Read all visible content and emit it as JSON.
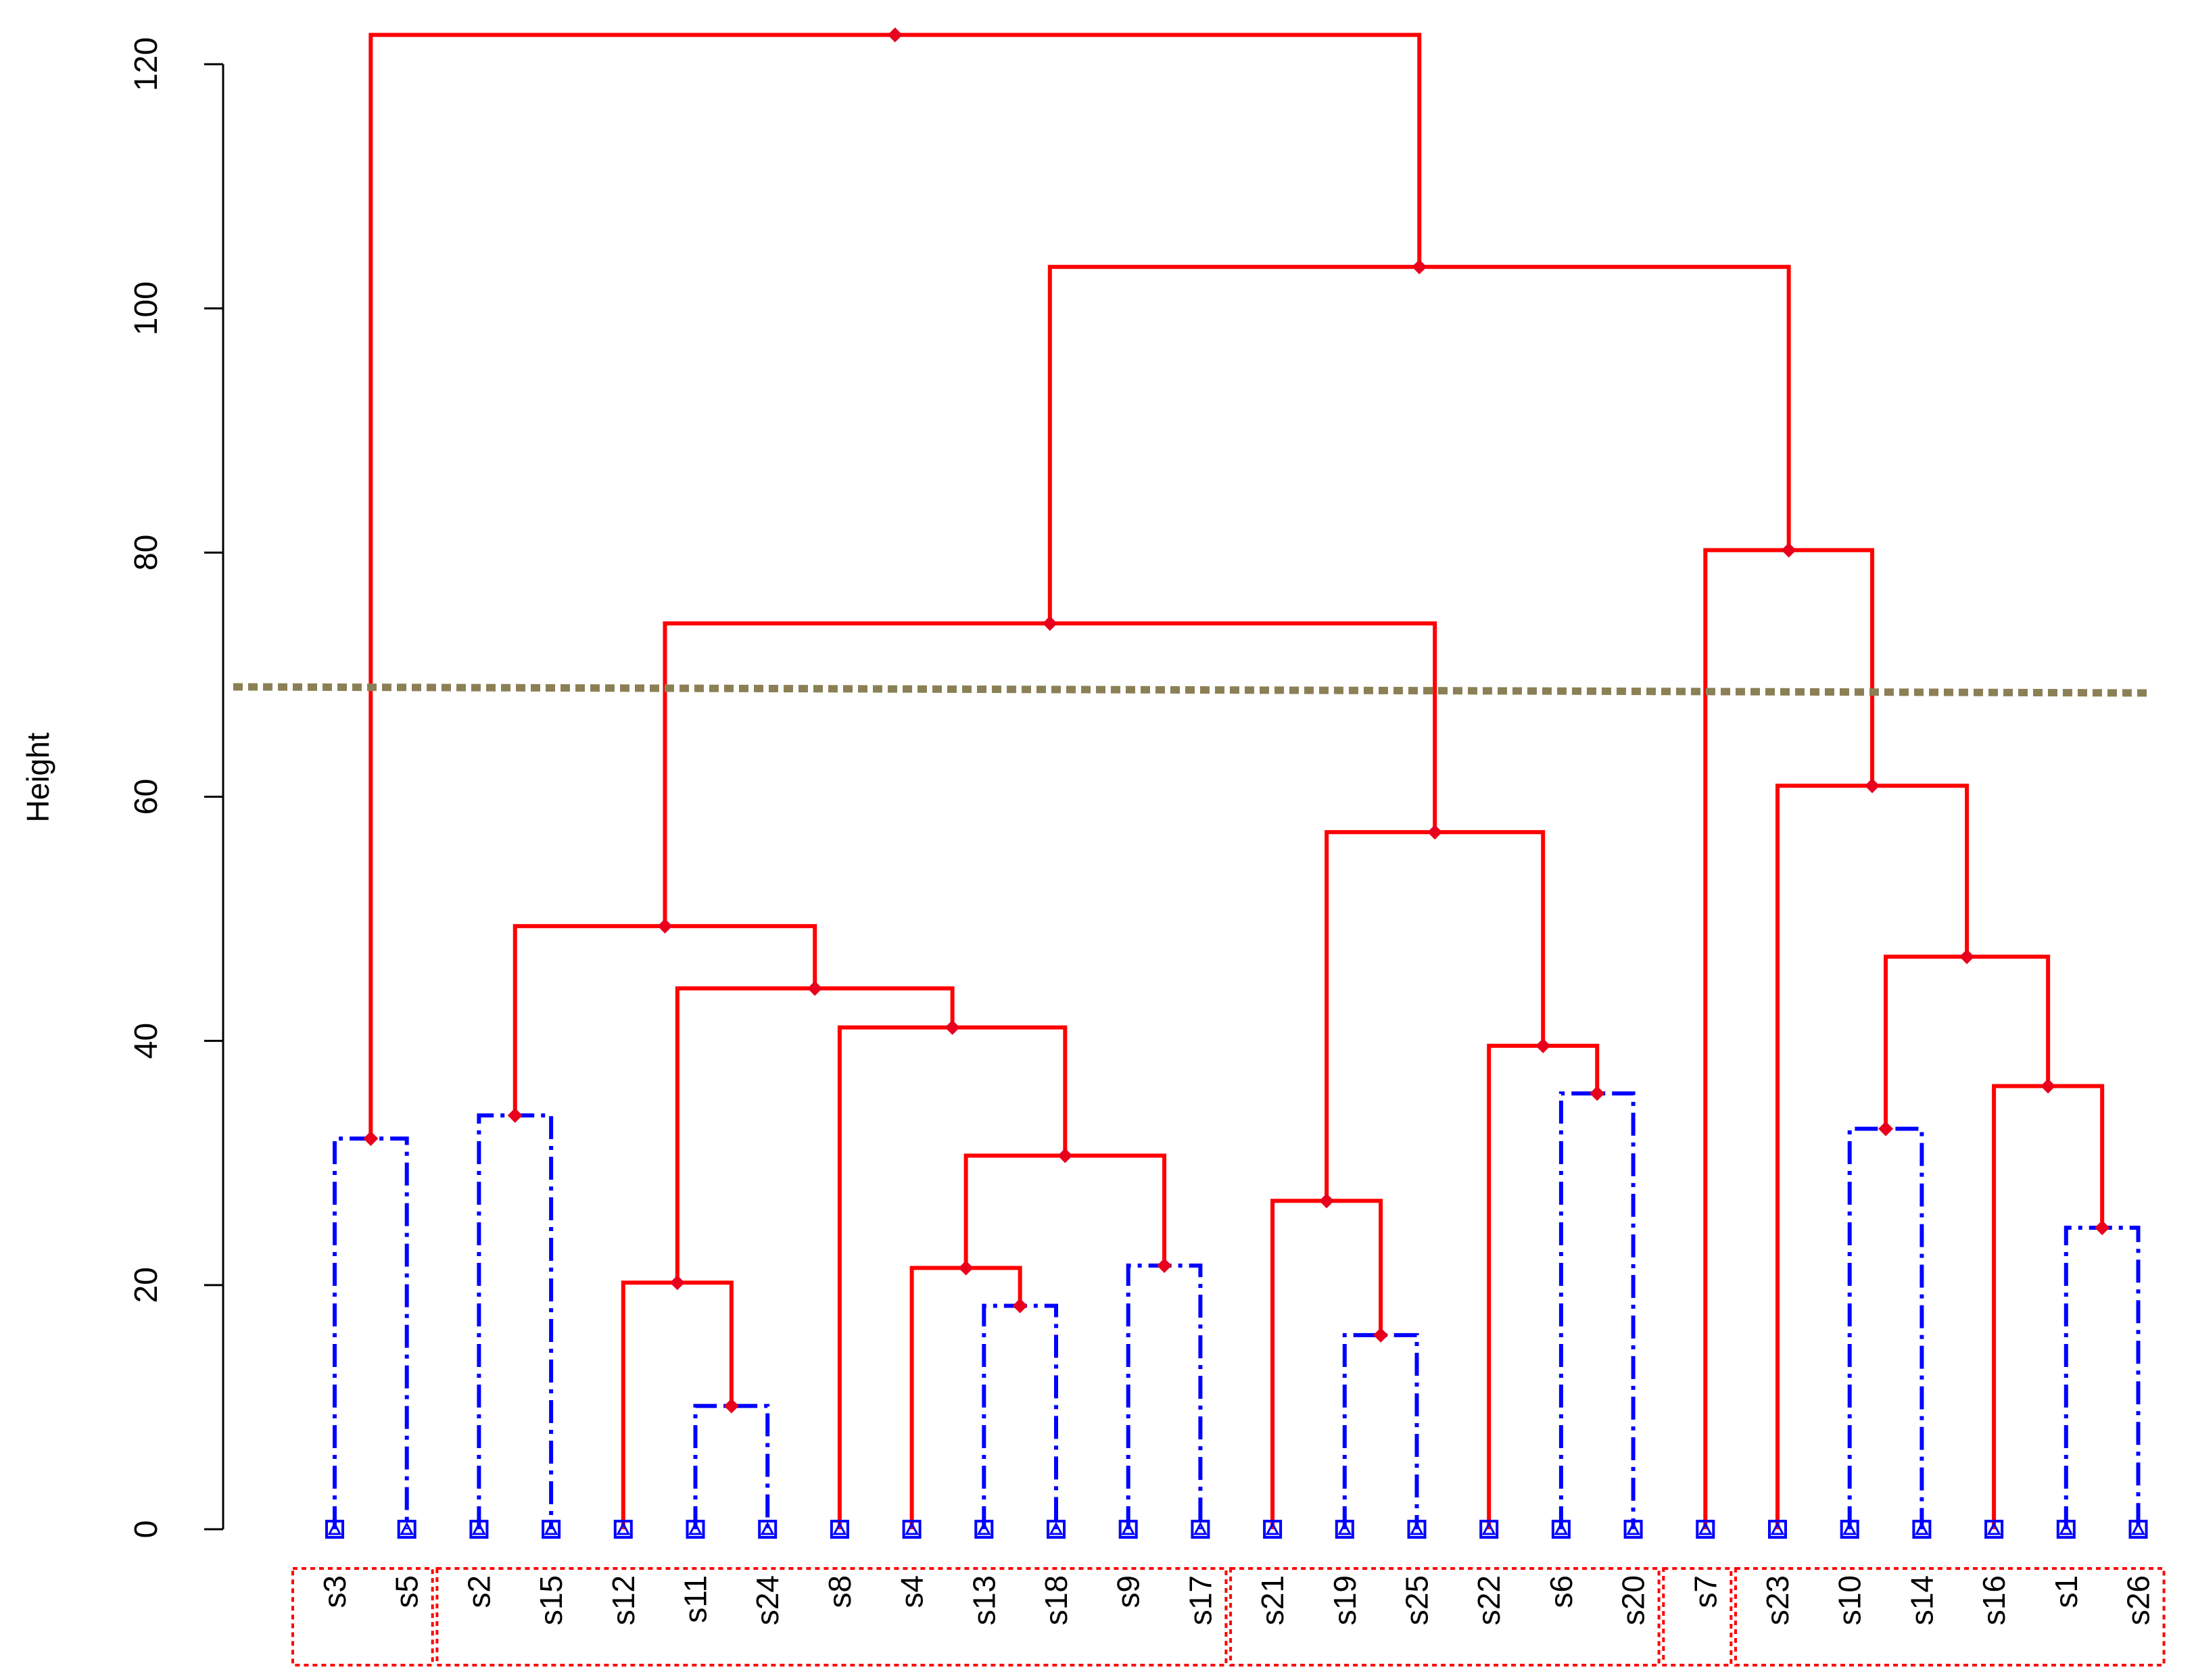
{
  "chart_data": {
    "type": "dendrogram",
    "ylabel": "Height",
    "ylim": [
      0,
      123
    ],
    "yticks": [
      "0",
      "20",
      "40",
      "60",
      "80",
      "100",
      "120"
    ],
    "leaves": [
      "s3",
      "s5",
      "s2",
      "s15",
      "s12",
      "s11",
      "s24",
      "s8",
      "s4",
      "s13",
      "s18",
      "s9",
      "s17",
      "s21",
      "s19",
      "s25",
      "s22",
      "s6",
      "s20",
      "s7",
      "s23",
      "s10",
      "s14",
      "s16",
      "s1",
      "s26"
    ],
    "merges": [
      {
        "a": "s11",
        "b": "s24",
        "height": 10.1,
        "style": "dashed"
      },
      {
        "a": "s19",
        "b": "s25",
        "height": 15.9,
        "style": "dashed"
      },
      {
        "a": "s13",
        "b": "s18",
        "height": 18.3,
        "style": "dashed"
      },
      {
        "a": "s12",
        "b": 0,
        "height": 20.2,
        "style": "solid"
      },
      {
        "a": "s4",
        "b": 2,
        "height": 21.4,
        "style": "solid"
      },
      {
        "a": "s9",
        "b": "s17",
        "height": 21.6,
        "style": "dashed"
      },
      {
        "a": "s1",
        "b": "s26",
        "height": 24.7,
        "style": "dashed"
      },
      {
        "a": "s21",
        "b": 1,
        "height": 26.9,
        "style": "solid"
      },
      {
        "a": 4,
        "b": 5,
        "height": 30.6,
        "style": "solid"
      },
      {
        "a": "s3",
        "b": "s5",
        "height": 32.0,
        "style": "dashed"
      },
      {
        "a": "s10",
        "b": "s14",
        "height": 32.8,
        "style": "dashed"
      },
      {
        "a": "s2",
        "b": "s15",
        "height": 33.9,
        "style": "dashed"
      },
      {
        "a": "s6",
        "b": "s20",
        "height": 35.7,
        "style": "dashed"
      },
      {
        "a": "s16",
        "b": 6,
        "height": 36.3,
        "style": "solid"
      },
      {
        "a": "s22",
        "b": 12,
        "height": 39.6,
        "style": "solid"
      },
      {
        "a": "s8",
        "b": 8,
        "height": 41.1,
        "style": "solid"
      },
      {
        "a": 3,
        "b": 15,
        "height": 44.3,
        "style": "solid"
      },
      {
        "a": 10,
        "b": 13,
        "height": 46.9,
        "style": "solid"
      },
      {
        "a": 11,
        "b": 16,
        "height": 49.4,
        "style": "solid"
      },
      {
        "a": 7,
        "b": 14,
        "height": 57.1,
        "style": "solid"
      },
      {
        "a": "s23",
        "b": 17,
        "height": 60.9,
        "style": "solid"
      },
      {
        "a": 18,
        "b": 19,
        "height": 74.2,
        "style": "solid"
      },
      {
        "a": "s7",
        "b": 20,
        "height": 80.2,
        "style": "solid"
      },
      {
        "a": 21,
        "b": 22,
        "height": 103.4,
        "style": "solid"
      },
      {
        "a": 9,
        "b": 23,
        "height": 122.4,
        "style": "solid"
      }
    ],
    "cut_height": [
      69.0,
      68.5
    ],
    "clusters": [
      [
        "s3",
        "s5"
      ],
      [
        "s2",
        "s15",
        "s12",
        "s11",
        "s24",
        "s8",
        "s4",
        "s13",
        "s18",
        "s9",
        "s17"
      ],
      [
        "s21",
        "s19",
        "s25",
        "s22",
        "s6",
        "s20"
      ],
      [
        "s7"
      ],
      [
        "s23",
        "s10",
        "s14",
        "s16",
        "s1",
        "s26"
      ]
    ],
    "colors": {
      "merge_line": "#ff0000",
      "leaf_branch": "#0000ff",
      "node_marker": "#e8001c",
      "leaf_marker": "#0000ff",
      "cut_line": "#8b8055",
      "cluster_box": "#ff0000"
    },
    "grid": false
  }
}
